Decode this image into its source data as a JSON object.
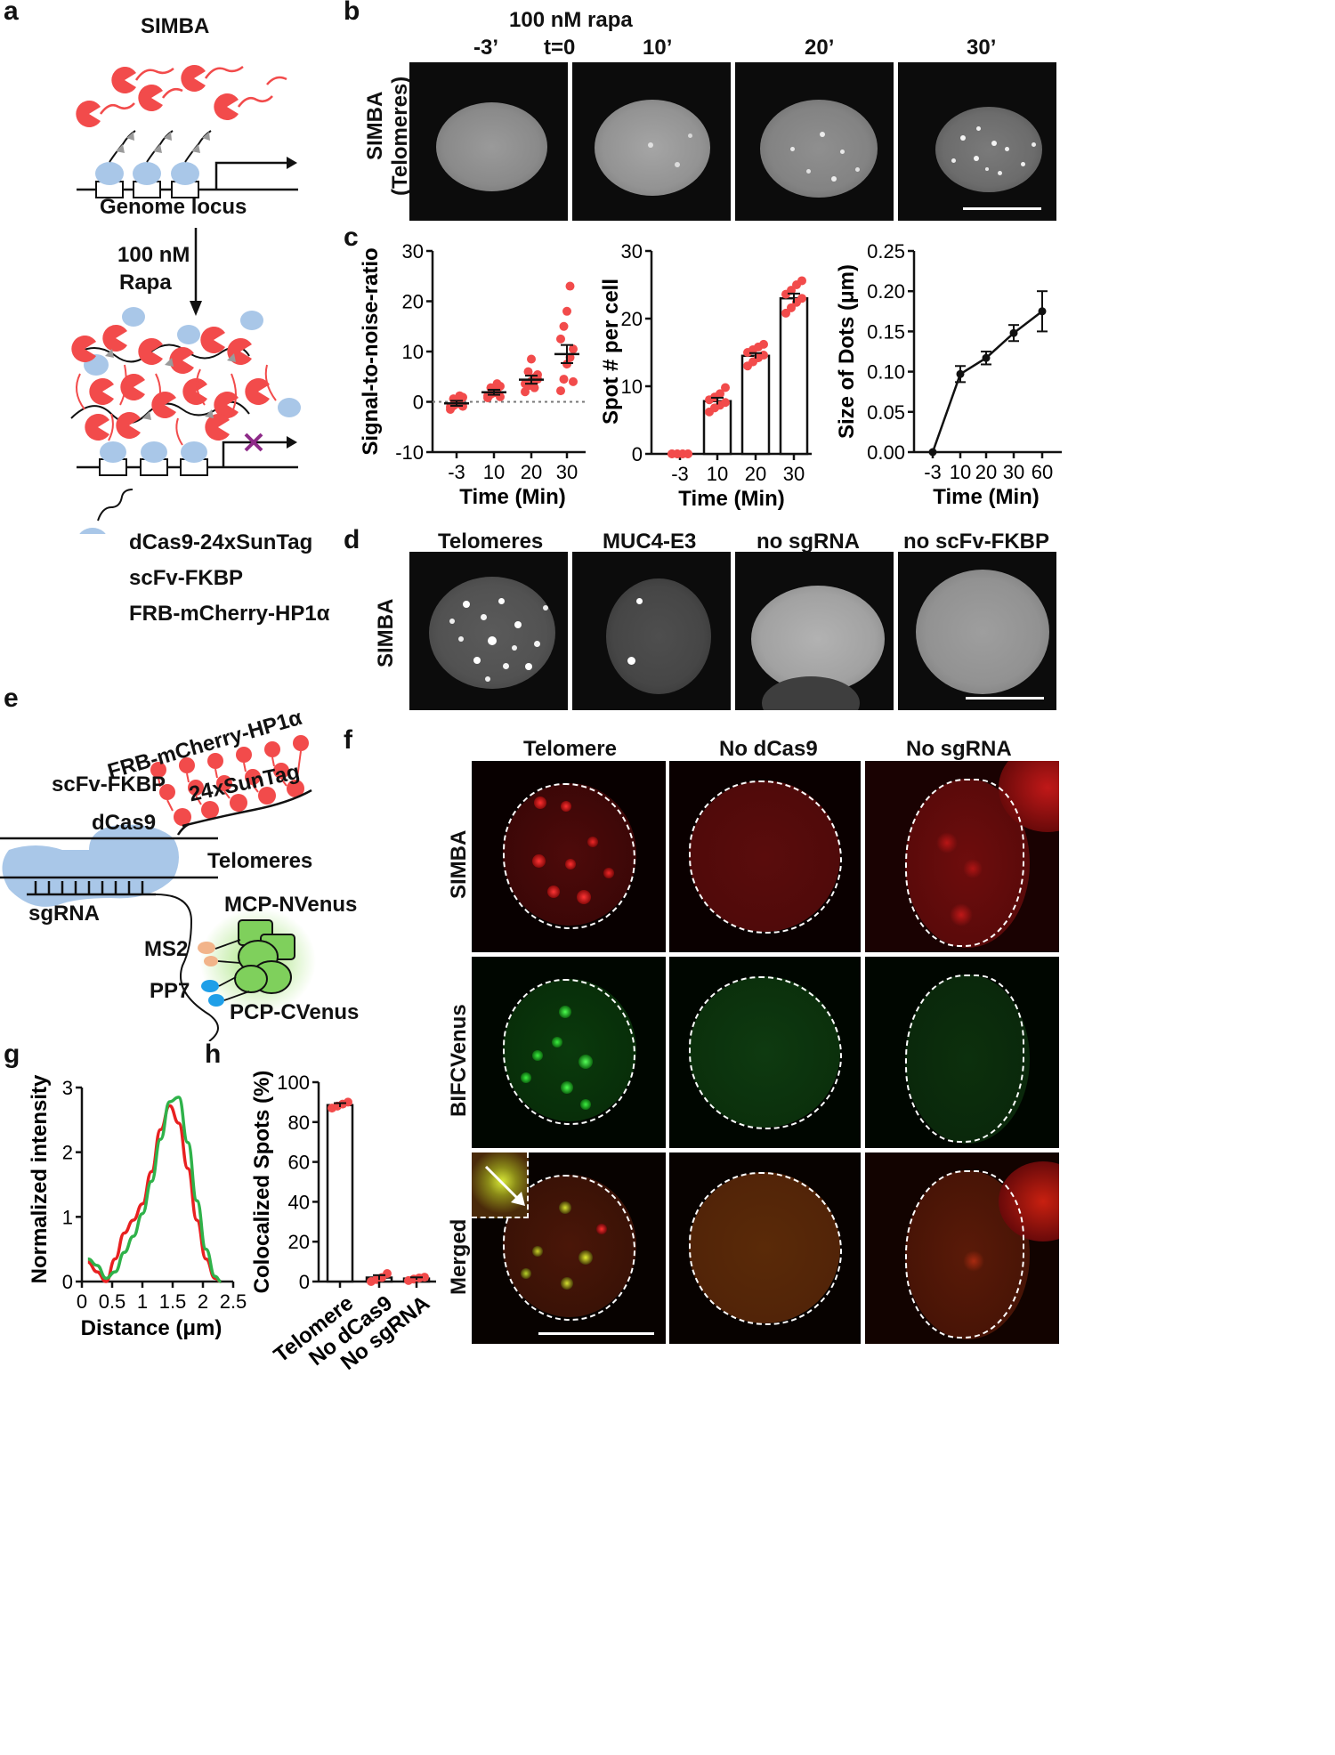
{
  "panels": {
    "a": "a",
    "b": "b",
    "c": "c",
    "d": "d",
    "e": "e",
    "f": "f",
    "g": "g",
    "h": "h"
  },
  "panel_a": {
    "title": "SIMBA",
    "locus_label": "Genome locus",
    "treatment_line1": "100 nM",
    "treatment_line2": "Rapa",
    "legend": {
      "dcas9": "dCas9-24xSunTag",
      "scfv": "scFv-FKBP",
      "frb": "FRB-mCherry-HP1α"
    }
  },
  "panel_b": {
    "treatment": "100 nM rapa",
    "row_label_1": "SIMBA",
    "row_label_2": "(Telomeres)",
    "t0": "t=0",
    "timepoints": [
      "-3’",
      "10’",
      "20’",
      "30’"
    ]
  },
  "panel_d": {
    "row_label": "SIMBA",
    "columns": [
      "Telomeres",
      "MUC4-E3",
      "no sgRNA",
      "no scFv-FKBP"
    ]
  },
  "panel_e": {
    "frb": "FRB-mCherry-HP1α",
    "scfv": "scFv-FKBP",
    "suntag": "24xSunTag",
    "dcas9": "dCas9",
    "telomeres": "Telomeres",
    "sgrna": "sgRNA",
    "ms2": "MS2",
    "pp7": "PP7",
    "mcp": "MCP-NVenus",
    "pcp": "PCP-CVenus"
  },
  "panel_f": {
    "columns": [
      "Telomere",
      "No dCas9",
      "No sgRNA"
    ],
    "rows": [
      "SIMBA",
      "BIFCVenus",
      "Merged"
    ]
  },
  "colors": {
    "simba_red": "#e8262a",
    "venus_green": "#2fd236",
    "dot_red": "#f24b4b",
    "dcas9_blue": "#a9c7e8",
    "ms2_orange": "#f2b48a",
    "pp7_blue": "#1f9fe8",
    "venus_fill": "#7fd05c",
    "scfv_grey": "#9a9a9a",
    "inhibit_purple": "#8e2a88"
  },
  "chart_data": [
    {
      "id": "c1",
      "type": "scatter",
      "xlabel": "Time (Min)",
      "ylabel": "Signal-to-noise-ratio",
      "categories": [
        "-3",
        "10",
        "20",
        "30"
      ],
      "ylim": [
        -10,
        30
      ],
      "yticks": [
        "-10",
        "0",
        "10",
        "20",
        "30"
      ],
      "means": [
        -0.3,
        1.9,
        4.4,
        9.5
      ],
      "sem": [
        0.5,
        0.5,
        0.8,
        1.8
      ],
      "points": [
        [
          -1.5,
          -0.8,
          -0.2,
          0.3,
          0.9,
          -1.0,
          0.6,
          -0.4,
          1.2,
          -0.9
        ],
        [
          0.8,
          1.5,
          2.0,
          2.5,
          3.1,
          1.2,
          2.8,
          1.8,
          3.6,
          1.0
        ],
        [
          2.0,
          3.2,
          4.1,
          4.8,
          5.4,
          3.6,
          6.0,
          8.5,
          2.8,
          4.5
        ],
        [
          2.2,
          4.5,
          7.5,
          8.8,
          10.5,
          12.5,
          15.0,
          18.0,
          23.0,
          4.0
        ]
      ],
      "reference_line": 0
    },
    {
      "id": "c2",
      "type": "bar",
      "xlabel": "Time (Min)",
      "ylabel": "Spot # per cell",
      "categories": [
        "-3",
        "10",
        "20",
        "30"
      ],
      "values": [
        0,
        7.8,
        14.5,
        23.0
      ],
      "sem": [
        0,
        0.5,
        0.4,
        0.7
      ],
      "ylim": [
        0,
        30
      ],
      "yticks": [
        "0",
        "10",
        "20",
        "30"
      ],
      "points": [
        [
          0,
          0,
          0,
          0,
          0,
          0,
          0,
          0
        ],
        [
          6.2,
          6.8,
          7.2,
          7.6,
          8.0,
          8.4,
          8.9,
          9.8
        ],
        [
          13.0,
          13.6,
          14.2,
          14.6,
          15.0,
          15.4,
          15.8,
          16.2
        ],
        [
          20.8,
          21.6,
          22.4,
          23.0,
          23.6,
          24.2,
          25.0,
          25.6
        ]
      ]
    },
    {
      "id": "c3",
      "type": "line",
      "xlabel": "Time (Min)",
      "ylabel": "Size of Dots (μm)",
      "categories": [
        "-3",
        "10",
        "20",
        "30",
        "60"
      ],
      "values": [
        0.0,
        0.097,
        0.117,
        0.148,
        0.175
      ],
      "sem": [
        0,
        0.01,
        0.008,
        0.01,
        0.025
      ],
      "ylim": [
        0,
        0.25
      ],
      "yticks": [
        "0.00",
        "0.05",
        "0.10",
        "0.15",
        "0.20",
        "0.25"
      ]
    },
    {
      "id": "g",
      "type": "line",
      "xlabel": "Distance (μm)",
      "ylabel": "Normalized intensity",
      "xlim": [
        0,
        2.5
      ],
      "ylim": [
        0,
        3
      ],
      "xticks": [
        "0",
        "0.5",
        "1",
        "1.5",
        "2",
        "2.5"
      ],
      "yticks": [
        "0",
        "1",
        "2",
        "3"
      ],
      "series": [
        {
          "color": "#e82020",
          "x": [
            0.0,
            0.15,
            0.3,
            0.45,
            0.6,
            0.75,
            0.9,
            1.05,
            1.2,
            1.35,
            1.5,
            1.65,
            1.8,
            1.95,
            2.1,
            2.2
          ],
          "y": [
            0.3,
            0.15,
            0.0,
            0.35,
            0.75,
            0.95,
            1.2,
            1.7,
            2.35,
            2.72,
            2.45,
            1.75,
            0.95,
            0.35,
            0.05,
            0.0
          ]
        },
        {
          "color": "#2fb24a",
          "x": [
            0.0,
            0.15,
            0.3,
            0.45,
            0.6,
            0.75,
            0.9,
            1.05,
            1.2,
            1.35,
            1.5,
            1.65,
            1.8,
            1.95,
            2.1,
            2.2
          ],
          "y": [
            0.35,
            0.25,
            0.05,
            0.15,
            0.45,
            0.7,
            1.05,
            1.55,
            2.2,
            2.78,
            2.85,
            2.15,
            1.25,
            0.5,
            0.08,
            0.0
          ]
        }
      ]
    },
    {
      "id": "h",
      "type": "bar",
      "ylabel": "Colocalized Spots (%)",
      "categories": [
        "Telomere",
        "No dCas9",
        "No sgRNA"
      ],
      "values": [
        88.5,
        2.0,
        1.5
      ],
      "sem": [
        1.0,
        1.2,
        0.6
      ],
      "ylim": [
        0,
        100
      ],
      "yticks": [
        "0",
        "20",
        "40",
        "60",
        "80",
        "100"
      ],
      "points": [
        [
          87,
          88,
          89,
          90
        ],
        [
          0,
          1,
          2,
          4
        ],
        [
          0.5,
          1.2,
          1.8,
          2.2
        ]
      ]
    }
  ]
}
